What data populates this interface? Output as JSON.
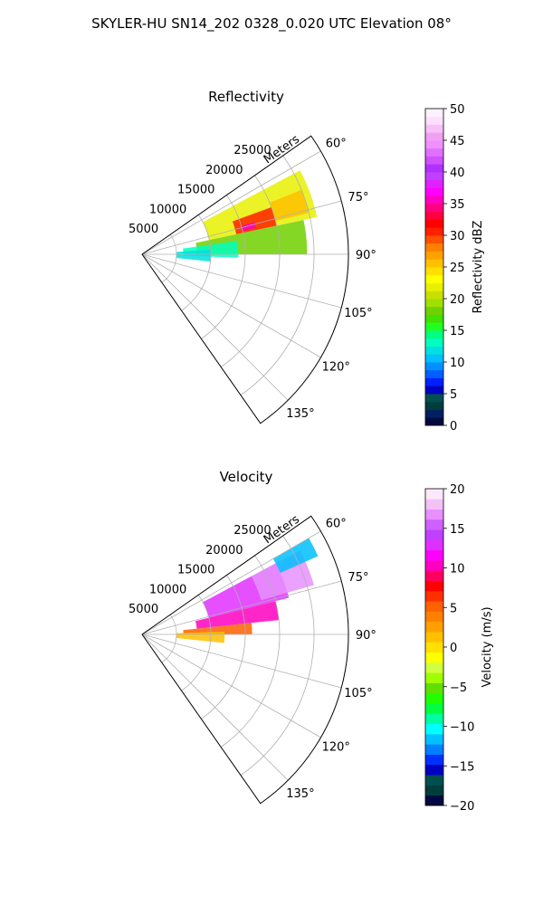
{
  "figure": {
    "title": "SKYLER-HU  SN14_202  0328_0.020 UTC Elevation 08°"
  },
  "colors": {
    "reflectivity_scale": [
      "#000a40",
      "#002060",
      "#003d3d",
      "#005050",
      "#0000c0",
      "#0020ff",
      "#0060ff",
      "#0090ff",
      "#00c0ff",
      "#00e0e0",
      "#00ffc0",
      "#00ff80",
      "#20ff20",
      "#40e000",
      "#70d000",
      "#a0e000",
      "#c8e000",
      "#e8f000",
      "#ffff00",
      "#ffe000",
      "#ffc000",
      "#ffa000",
      "#ff8000",
      "#ff5000",
      "#ff2000",
      "#ff0000",
      "#ff0040",
      "#ff0080",
      "#ff00c0",
      "#ff00ff",
      "#e020ff",
      "#c040ff",
      "#b030ff",
      "#d050ff",
      "#e070ff",
      "#f090ff",
      "#f0a0f0",
      "#f8c0f8",
      "#fce0fc",
      "#fff0ff"
    ],
    "velocity_scale": [
      "#000a40",
      "#003d3d",
      "#005050",
      "#0000c0",
      "#0030ff",
      "#0080ff",
      "#00c0ff",
      "#00ffff",
      "#00ffa0",
      "#00ff40",
      "#20ff00",
      "#60e000",
      "#a0ff00",
      "#d0ff40",
      "#ffff00",
      "#ffe000",
      "#ffc000",
      "#ffa000",
      "#ff8000",
      "#ff6000",
      "#ff3000",
      "#ff0000",
      "#ff0060",
      "#ff00c0",
      "#ff00ff",
      "#e030ff",
      "#c040ff",
      "#d060ff",
      "#e890ff",
      "#f4c0f8",
      "#fce8fc"
    ]
  },
  "chart_data": [
    {
      "type": "heatmap",
      "projection": "polar-sector",
      "title": "Reflectivity",
      "radial_label": "Meters",
      "radial_ticks": [
        "5000",
        "10000",
        "15000",
        "20000",
        "25000"
      ],
      "radial_values": [
        5000,
        10000,
        15000,
        20000,
        25000
      ],
      "rmax": 30000,
      "azimuth_range_deg": [
        55,
        145
      ],
      "azimuth_ticks": [
        "60°",
        "75°",
        "90°",
        "105°",
        "120°",
        "135°"
      ],
      "azimuth_values": [
        60,
        75,
        90,
        105,
        120,
        135
      ],
      "grid": true,
      "colorbar": {
        "label": "Reflectivity dBZ",
        "range": [
          0,
          50
        ],
        "ticks": [
          "0",
          "5",
          "10",
          "15",
          "20",
          "25",
          "30",
          "35",
          "40",
          "45",
          "50"
        ],
        "tick_values": [
          0,
          5,
          10,
          15,
          20,
          25,
          30,
          35,
          40,
          45,
          50
        ],
        "placement": "right"
      },
      "echo_regions": [
        {
          "az_range": [
            62,
            78
          ],
          "r_range": [
            10000,
            26000
          ],
          "value": 22
        },
        {
          "az_range": [
            70,
            78
          ],
          "r_range": [
            14000,
            20000
          ],
          "value": 30
        },
        {
          "az_range": [
            74,
            77
          ],
          "r_range": [
            15000,
            17000
          ],
          "value": 35
        },
        {
          "az_range": [
            68,
            76
          ],
          "r_range": [
            20000,
            25000
          ],
          "value": 26
        },
        {
          "az_range": [
            78,
            90
          ],
          "r_range": [
            8000,
            24000
          ],
          "value": 18
        },
        {
          "az_range": [
            82,
            92
          ],
          "r_range": [
            6000,
            14000
          ],
          "value": 13
        },
        {
          "az_range": [
            86,
            96
          ],
          "r_range": [
            5000,
            10000
          ],
          "value": 12
        }
      ]
    },
    {
      "type": "heatmap",
      "projection": "polar-sector",
      "title": "Velocity",
      "radial_label": "Meters",
      "radial_ticks": [
        "5000",
        "10000",
        "15000",
        "20000",
        "25000"
      ],
      "radial_values": [
        5000,
        10000,
        15000,
        20000,
        25000
      ],
      "rmax": 30000,
      "azimuth_range_deg": [
        55,
        145
      ],
      "azimuth_ticks": [
        "60°",
        "75°",
        "90°",
        "105°",
        "120°",
        "135°"
      ],
      "azimuth_values": [
        60,
        75,
        90,
        105,
        120,
        135
      ],
      "grid": true,
      "colorbar": {
        "label": "Velocity (m/s)",
        "range": [
          -20,
          20
        ],
        "ticks": [
          "20",
          "15",
          "10",
          "5",
          "0",
          "−5",
          "−10",
          "−15",
          "−20"
        ],
        "tick_values": [
          20,
          15,
          10,
          5,
          0,
          -5,
          -10,
          -15,
          -20
        ],
        "placement": "right"
      },
      "echo_regions": [
        {
          "az_range": [
            62,
            76
          ],
          "r_range": [
            10000,
            22000
          ],
          "value": 13
        },
        {
          "az_range": [
            62,
            74
          ],
          "r_range": [
            18000,
            26000
          ],
          "value": 17
        },
        {
          "az_range": [
            60,
            66
          ],
          "r_range": [
            22000,
            28000
          ],
          "value": -11
        },
        {
          "az_range": [
            76,
            84
          ],
          "r_range": [
            8000,
            20000
          ],
          "value": 10
        },
        {
          "az_range": [
            84,
            90
          ],
          "r_range": [
            6000,
            16000
          ],
          "value": 5
        },
        {
          "az_range": [
            88,
            96
          ],
          "r_range": [
            5000,
            12000
          ],
          "value": 1
        }
      ]
    }
  ]
}
